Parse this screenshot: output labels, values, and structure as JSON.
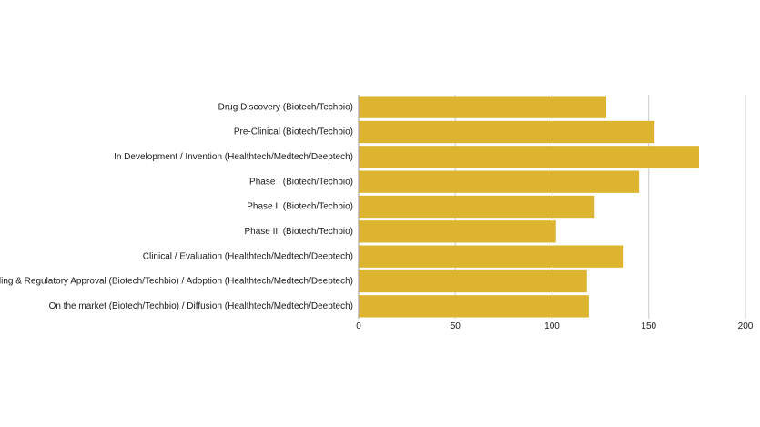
{
  "chart_data": {
    "type": "bar",
    "orientation": "horizontal",
    "categories": [
      "Drug Discovery (Biotech/Techbio)",
      "Pre-Clinical (Biotech/Techbio)",
      "In Development / Invention (Healthtech/Medtech/Deeptech)",
      "Phase I (Biotech/Techbio)",
      "Phase II (Biotech/Techbio)",
      "Phase III (Biotech/Techbio)",
      "Clinical / Evaluation (Healthtech/Medtech/Deeptech)",
      "Filing & Regulatory Approval (Biotech/Techbio) / Adoption (Healthtech/Medtech/Deeptech)",
      "On the market (Biotech/Techbio) / Diffusion (Healthtech/Medtech/Deeptech)"
    ],
    "values": [
      128,
      153,
      176,
      145,
      122,
      102,
      137,
      118,
      119
    ],
    "title": "",
    "xlabel": "",
    "ylabel": "",
    "xlim": [
      0,
      200
    ],
    "xticks": [
      "0",
      "50",
      "100",
      "150",
      "200"
    ],
    "grid": "vertical",
    "legend": "none",
    "bar_color": "#DDB42F"
  }
}
